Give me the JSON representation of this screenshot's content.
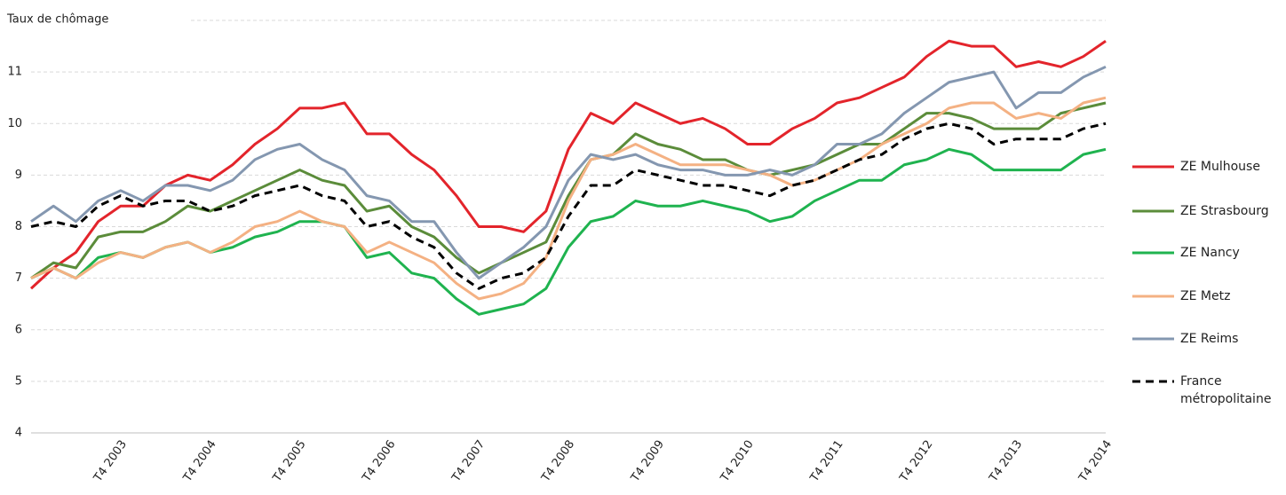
{
  "chart_data": {
    "type": "line",
    "y_label": "Taux de chômage",
    "categories": [
      null,
      null,
      null,
      null,
      "T4 2003",
      null,
      null,
      null,
      "T4 2004",
      null,
      null,
      null,
      "T4 2005",
      null,
      null,
      null,
      "T4 2006",
      null,
      null,
      null,
      "T4 2007",
      null,
      null,
      null,
      "T4 2008",
      null,
      null,
      null,
      "T4 2009",
      null,
      null,
      null,
      "T4 2010",
      null,
      null,
      null,
      "T4 2011",
      null,
      null,
      null,
      "T4 2012",
      null,
      null,
      null,
      "T4 2013",
      null,
      null,
      null,
      "T4 2014"
    ],
    "ylim": [
      4,
      12
    ],
    "yticks": [
      4,
      5,
      6,
      7,
      8,
      9,
      10,
      11
    ],
    "grid": true,
    "legend": "right",
    "series": [
      {
        "name": "ZE Mulhouse",
        "color": "#e3242b",
        "values": [
          6.8,
          7.2,
          7.5,
          8.1,
          8.4,
          8.4,
          8.8,
          9.0,
          8.9,
          9.2,
          9.6,
          9.9,
          10.3,
          10.3,
          10.4,
          9.8,
          9.8,
          9.4,
          9.1,
          8.6,
          8.0,
          8.0,
          7.9,
          8.3,
          9.5,
          10.2,
          10.0,
          10.4,
          10.2,
          10.0,
          10.1,
          9.9,
          9.6,
          9.6,
          9.9,
          10.1,
          10.4,
          10.5,
          10.7,
          10.9,
          11.3,
          11.6,
          11.5,
          11.5,
          11.1,
          11.2,
          11.1,
          11.3,
          11.6
        ]
      },
      {
        "name": "ZE Strasbourg",
        "color": "#5b8c3a",
        "values": [
          7.0,
          7.3,
          7.2,
          7.8,
          7.9,
          7.9,
          8.1,
          8.4,
          8.3,
          8.5,
          8.7,
          8.9,
          9.1,
          8.9,
          8.8,
          8.3,
          8.4,
          8.0,
          7.8,
          7.4,
          7.1,
          7.3,
          7.5,
          7.7,
          8.6,
          9.3,
          9.4,
          9.8,
          9.6,
          9.5,
          9.3,
          9.3,
          9.1,
          9.0,
          9.1,
          9.2,
          9.4,
          9.6,
          9.6,
          9.9,
          10.2,
          10.2,
          10.1,
          9.9,
          9.9,
          9.9,
          10.2,
          10.3,
          10.4
        ]
      },
      {
        "name": "ZE Nancy",
        "color": "#1fb34f",
        "values": [
          7.0,
          7.2,
          7.0,
          7.4,
          7.5,
          7.4,
          7.6,
          7.7,
          7.5,
          7.6,
          7.8,
          7.9,
          8.1,
          8.1,
          8.0,
          7.4,
          7.5,
          7.1,
          7.0,
          6.6,
          6.3,
          6.4,
          6.5,
          6.8,
          7.6,
          8.1,
          8.2,
          8.5,
          8.4,
          8.4,
          8.5,
          8.4,
          8.3,
          8.1,
          8.2,
          8.5,
          8.7,
          8.9,
          8.9,
          9.2,
          9.3,
          9.5,
          9.4,
          9.1,
          9.1,
          9.1,
          9.1,
          9.4,
          9.5
        ]
      },
      {
        "name": "ZE Metz",
        "color": "#f4b183",
        "values": [
          7.0,
          7.2,
          7.0,
          7.3,
          7.5,
          7.4,
          7.6,
          7.7,
          7.5,
          7.7,
          8.0,
          8.1,
          8.3,
          8.1,
          8.0,
          7.5,
          7.7,
          7.5,
          7.3,
          6.9,
          6.6,
          6.7,
          6.9,
          7.4,
          8.5,
          9.3,
          9.4,
          9.6,
          9.4,
          9.2,
          9.2,
          9.2,
          9.1,
          9.0,
          8.8,
          8.9,
          9.1,
          9.3,
          9.6,
          9.8,
          10.0,
          10.3,
          10.4,
          10.4,
          10.1,
          10.2,
          10.1,
          10.4,
          10.5
        ]
      },
      {
        "name": "ZE Reims",
        "color": "#8497b0",
        "values": [
          8.1,
          8.4,
          8.1,
          8.5,
          8.7,
          8.5,
          8.8,
          8.8,
          8.7,
          8.9,
          9.3,
          9.5,
          9.6,
          9.3,
          9.1,
          8.6,
          8.5,
          8.1,
          8.1,
          7.5,
          7.0,
          7.3,
          7.6,
          8.0,
          8.9,
          9.4,
          9.3,
          9.4,
          9.2,
          9.1,
          9.1,
          9.0,
          9.0,
          9.1,
          9.0,
          9.2,
          9.6,
          9.6,
          9.8,
          10.2,
          10.5,
          10.8,
          10.9,
          11.0,
          10.3,
          10.6,
          10.6,
          10.9,
          11.1
        ]
      },
      {
        "name": "France métropolitaine",
        "color": "#000000",
        "dash": true,
        "values": [
          8.0,
          8.1,
          8.0,
          8.4,
          8.6,
          8.4,
          8.5,
          8.5,
          8.3,
          8.4,
          8.6,
          8.7,
          8.8,
          8.6,
          8.5,
          8.0,
          8.1,
          7.8,
          7.6,
          7.1,
          6.8,
          7.0,
          7.1,
          7.4,
          8.2,
          8.8,
          8.8,
          9.1,
          9.0,
          8.9,
          8.8,
          8.8,
          8.7,
          8.6,
          8.8,
          8.9,
          9.1,
          9.3,
          9.4,
          9.7,
          9.9,
          10.0,
          9.9,
          9.6,
          9.7,
          9.7,
          9.7,
          9.9,
          10.0
        ]
      }
    ]
  }
}
